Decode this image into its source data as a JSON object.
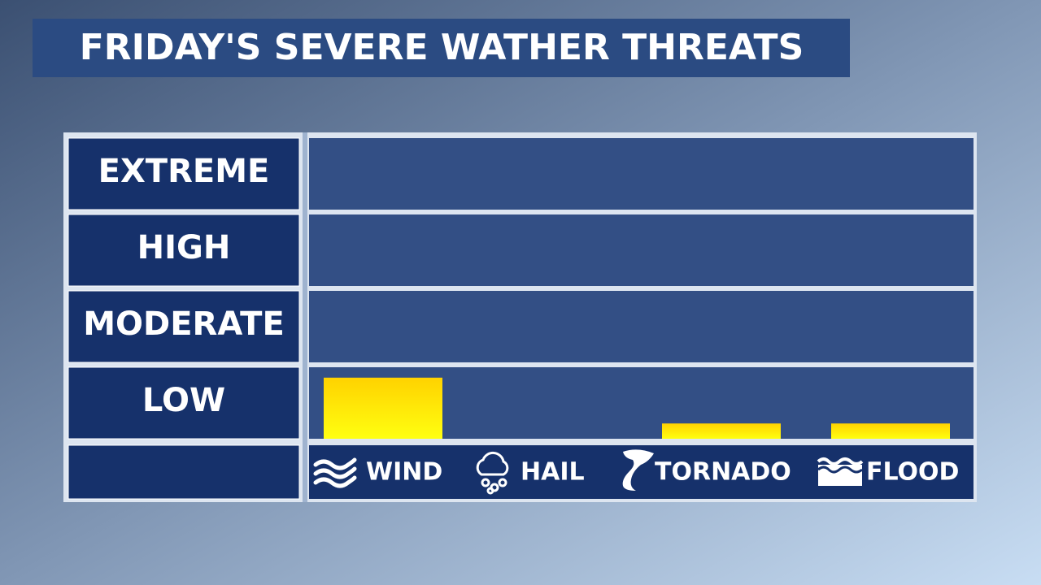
{
  "chart_data": {
    "type": "bar",
    "title": "FRIDAY'S SEVERE WATHER THREATS",
    "categories": [
      "WIND",
      "HAIL",
      "TORNADO",
      "FLOOD"
    ],
    "values": [
      0.8,
      0,
      0.2,
      0.2
    ],
    "color_top": "#ffd200",
    "color_bottom": "#ffff10",
    "ylim": [
      0,
      4
    ],
    "yticks": [
      {
        "value": 0.5,
        "label": "LOW"
      },
      {
        "value": 1.5,
        "label": "MODERATE"
      },
      {
        "value": 2.5,
        "label": "HIGH"
      },
      {
        "value": 3.5,
        "label": "EXTREME"
      }
    ]
  }
}
